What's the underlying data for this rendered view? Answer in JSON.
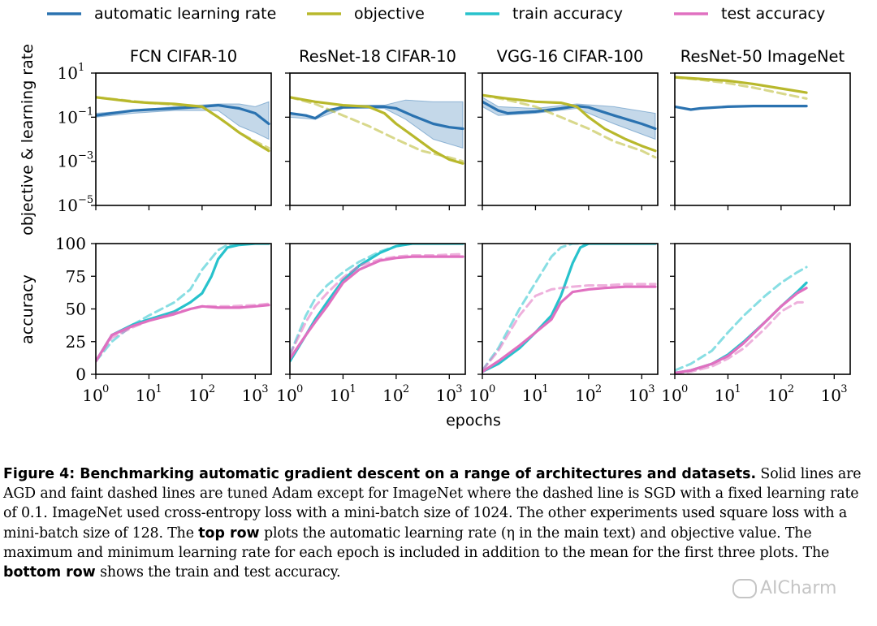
{
  "legend": [
    {
      "label": "automatic learning rate",
      "color": "#2a72b0"
    },
    {
      "label": "objective",
      "color": "#b8b82c"
    },
    {
      "label": "train accuracy",
      "color": "#27c2cc"
    },
    {
      "label": "test accuracy",
      "color": "#e070c0"
    }
  ],
  "xlabel": "epochs",
  "row_labels": {
    "top": "objective & learning rate",
    "bottom": "accuracy"
  },
  "chart_data": [
    {
      "type": "line",
      "title": "FCN CIFAR-10",
      "row": "top",
      "yscale": "log",
      "xscale": "log",
      "xlim": [
        1,
        2000
      ],
      "ylim": [
        1e-05,
        10
      ],
      "yticks": [
        "10^1",
        "10^-1",
        "10^-3",
        "10^-5"
      ],
      "series": [
        {
          "name": "automatic learning rate",
          "style": "solid",
          "band": [
            [
              1,
              0.1,
              0.15
            ],
            [
              5,
              0.15,
              0.2
            ],
            [
              30,
              0.2,
              0.3
            ],
            [
              200,
              0.2,
              0.4
            ],
            [
              500,
              0.04,
              0.4
            ],
            [
              1000,
              0.02,
              0.3
            ],
            [
              1800,
              0.01,
              0.5
            ]
          ],
          "x": [
            1,
            2,
            5,
            10,
            30,
            100,
            200,
            300,
            500,
            1000,
            1800
          ],
          "y": [
            0.12,
            0.15,
            0.2,
            0.22,
            0.25,
            0.3,
            0.35,
            0.3,
            0.25,
            0.15,
            0.05
          ]
        },
        {
          "name": "objective",
          "style": "solid",
          "x": [
            1,
            2,
            5,
            10,
            30,
            100,
            200,
            300,
            500,
            1000,
            1800
          ],
          "y": [
            0.8,
            0.65,
            0.5,
            0.45,
            0.4,
            0.3,
            0.1,
            0.05,
            0.02,
            0.007,
            0.003
          ]
        },
        {
          "name": "objective",
          "style": "dashed",
          "x": [
            1,
            10,
            100,
            200,
            300,
            500,
            1000,
            1800
          ],
          "y": [
            0.8,
            0.45,
            0.3,
            0.1,
            0.05,
            0.02,
            0.008,
            0.004
          ]
        }
      ]
    },
    {
      "type": "line",
      "title": "ResNet-18 CIFAR-10",
      "row": "top",
      "yscale": "log",
      "xscale": "log",
      "xlim": [
        1,
        2000
      ],
      "ylim": [
        1e-05,
        10
      ],
      "series": [
        {
          "name": "automatic learning rate",
          "style": "solid",
          "band": [
            [
              1,
              0.1,
              0.15
            ],
            [
              3,
              0.08,
              0.1
            ],
            [
              10,
              0.25,
              0.35
            ],
            [
              60,
              0.25,
              0.35
            ],
            [
              150,
              0.08,
              0.6
            ],
            [
              500,
              0.01,
              0.5
            ],
            [
              1800,
              0.004,
              0.5
            ]
          ],
          "x": [
            1,
            2,
            3,
            5,
            10,
            30,
            60,
            100,
            200,
            500,
            1000,
            1800
          ],
          "y": [
            0.15,
            0.12,
            0.09,
            0.2,
            0.28,
            0.3,
            0.3,
            0.25,
            0.12,
            0.05,
            0.035,
            0.03
          ]
        },
        {
          "name": "objective",
          "style": "solid",
          "x": [
            1,
            3,
            10,
            30,
            60,
            100,
            200,
            500,
            1000,
            1800
          ],
          "y": [
            0.8,
            0.5,
            0.35,
            0.3,
            0.15,
            0.05,
            0.015,
            0.003,
            0.0012,
            0.0008
          ]
        },
        {
          "name": "objective",
          "style": "dashed",
          "x": [
            1,
            3,
            10,
            30,
            100,
            300,
            1000,
            1800
          ],
          "y": [
            0.8,
            0.4,
            0.12,
            0.04,
            0.01,
            0.003,
            0.0015,
            0.001
          ]
        }
      ]
    },
    {
      "type": "line",
      "title": "VGG-16 CIFAR-100",
      "row": "top",
      "yscale": "log",
      "xscale": "log",
      "xlim": [
        1,
        2000
      ],
      "ylim": [
        1e-05,
        10
      ],
      "series": [
        {
          "name": "automatic learning rate",
          "style": "solid",
          "band": [
            [
              1,
              0.3,
              0.8
            ],
            [
              2,
              0.12,
              0.3
            ],
            [
              10,
              0.15,
              0.25
            ],
            [
              60,
              0.25,
              0.4
            ],
            [
              300,
              0.05,
              0.3
            ],
            [
              1800,
              0.01,
              0.15
            ]
          ],
          "x": [
            1,
            2,
            3,
            10,
            30,
            60,
            100,
            300,
            1000,
            1800
          ],
          "y": [
            0.5,
            0.2,
            0.15,
            0.18,
            0.25,
            0.32,
            0.28,
            0.12,
            0.05,
            0.03
          ]
        },
        {
          "name": "objective",
          "style": "solid",
          "x": [
            1,
            3,
            10,
            30,
            60,
            100,
            200,
            500,
            1000,
            1800
          ],
          "y": [
            1.0,
            0.7,
            0.5,
            0.45,
            0.3,
            0.1,
            0.03,
            0.01,
            0.005,
            0.003
          ]
        },
        {
          "name": "objective",
          "style": "dashed",
          "x": [
            1,
            3,
            10,
            30,
            100,
            300,
            1000,
            1800
          ],
          "y": [
            1.0,
            0.6,
            0.3,
            0.1,
            0.03,
            0.008,
            0.003,
            0.0015
          ]
        }
      ]
    },
    {
      "type": "line",
      "title": "ResNet-50 ImageNet",
      "row": "top",
      "yscale": "log",
      "xscale": "log",
      "xlim": [
        1,
        2000
      ],
      "ylim": [
        1e-05,
        10
      ],
      "series": [
        {
          "name": "automatic learning rate",
          "style": "solid",
          "x": [
            1,
            2,
            3,
            10,
            30,
            100,
            300
          ],
          "y": [
            0.3,
            0.22,
            0.25,
            0.3,
            0.32,
            0.32,
            0.32
          ]
        },
        {
          "name": "objective",
          "style": "solid",
          "x": [
            1,
            3,
            10,
            30,
            100,
            300
          ],
          "y": [
            6.5,
            5.5,
            4.5,
            3.2,
            2.0,
            1.3
          ]
        },
        {
          "name": "objective",
          "style": "dashed",
          "x": [
            1,
            3,
            10,
            30,
            100,
            300
          ],
          "y": [
            6.5,
            5.0,
            3.5,
            2.2,
            1.2,
            0.7
          ]
        }
      ]
    },
    {
      "type": "line",
      "title": "",
      "row": "bottom",
      "dataset": "FCN CIFAR-10",
      "xscale": "log",
      "xlim": [
        1,
        2000
      ],
      "ylim": [
        0,
        100
      ],
      "xticks": [
        "10^0",
        "10^1",
        "10^2",
        "10^3"
      ],
      "yticks": [
        0,
        25,
        50,
        75,
        100
      ],
      "series": [
        {
          "name": "train accuracy",
          "style": "solid",
          "x": [
            1,
            2,
            5,
            10,
            30,
            60,
            100,
            150,
            200,
            300,
            500,
            1000,
            1800
          ],
          "y": [
            10,
            30,
            38,
            42,
            48,
            55,
            62,
            75,
            88,
            97,
            99,
            100,
            100
          ]
        },
        {
          "name": "train accuracy",
          "style": "dashed",
          "x": [
            1,
            2,
            5,
            10,
            30,
            60,
            100,
            200,
            300,
            500,
            1000,
            1800
          ],
          "y": [
            10,
            25,
            38,
            45,
            55,
            65,
            80,
            95,
            99,
            100,
            100,
            100
          ]
        },
        {
          "name": "test accuracy",
          "style": "solid",
          "x": [
            1,
            2,
            5,
            10,
            30,
            60,
            100,
            200,
            500,
            1000,
            1800
          ],
          "y": [
            10,
            30,
            37,
            41,
            46,
            50,
            52,
            51,
            51,
            52,
            53
          ]
        },
        {
          "name": "test accuracy",
          "style": "dashed",
          "x": [
            1,
            2,
            5,
            10,
            30,
            100,
            300,
            1000,
            1800
          ],
          "y": [
            10,
            28,
            36,
            41,
            47,
            52,
            52,
            53,
            54
          ]
        }
      ]
    },
    {
      "type": "line",
      "title": "",
      "row": "bottom",
      "dataset": "ResNet-18 CIFAR-10",
      "xscale": "log",
      "xlim": [
        1,
        2000
      ],
      "ylim": [
        0,
        100
      ],
      "xticks": [
        "10^0",
        "10^1",
        "10^2",
        "10^3"
      ],
      "series": [
        {
          "name": "train accuracy",
          "style": "solid",
          "x": [
            1,
            2,
            3,
            5,
            10,
            20,
            50,
            100,
            200,
            500,
            1800
          ],
          "y": [
            10,
            30,
            42,
            55,
            72,
            83,
            93,
            98,
            100,
            100,
            100
          ]
        },
        {
          "name": "train accuracy",
          "style": "dashed",
          "x": [
            1,
            2,
            3,
            5,
            10,
            20,
            50,
            100,
            200,
            500,
            1800
          ],
          "y": [
            15,
            45,
            58,
            68,
            78,
            86,
            94,
            98,
            100,
            100,
            100
          ]
        },
        {
          "name": "test accuracy",
          "style": "solid",
          "x": [
            1,
            2,
            3,
            5,
            10,
            20,
            50,
            100,
            200,
            500,
            1800
          ],
          "y": [
            12,
            30,
            40,
            52,
            70,
            80,
            87,
            89,
            90,
            90,
            90
          ]
        },
        {
          "name": "test accuracy",
          "style": "dashed",
          "x": [
            1,
            2,
            3,
            5,
            10,
            20,
            50,
            100,
            200,
            500,
            1800
          ],
          "y": [
            15,
            40,
            52,
            62,
            74,
            83,
            88,
            90,
            91,
            91,
            92
          ]
        }
      ]
    },
    {
      "type": "line",
      "title": "",
      "row": "bottom",
      "dataset": "VGG-16 CIFAR-100",
      "xscale": "log",
      "xlim": [
        1,
        2000
      ],
      "ylim": [
        0,
        100
      ],
      "xticks": [
        "10^0",
        "10^1",
        "10^2",
        "10^3"
      ],
      "series": [
        {
          "name": "train accuracy",
          "style": "solid",
          "x": [
            1,
            2,
            5,
            10,
            20,
            30,
            50,
            70,
            100,
            200,
            500,
            1800
          ],
          "y": [
            2,
            8,
            20,
            32,
            45,
            60,
            85,
            97,
            100,
            100,
            100,
            100
          ]
        },
        {
          "name": "train accuracy",
          "style": "dashed",
          "x": [
            1,
            2,
            5,
            10,
            20,
            30,
            50,
            100,
            200,
            500,
            1800
          ],
          "y": [
            3,
            20,
            50,
            70,
            90,
            97,
            100,
            100,
            100,
            100,
            100
          ]
        },
        {
          "name": "test accuracy",
          "style": "solid",
          "x": [
            1,
            2,
            5,
            10,
            20,
            30,
            50,
            100,
            200,
            500,
            1800
          ],
          "y": [
            2,
            10,
            22,
            32,
            42,
            55,
            63,
            65,
            66,
            67,
            67
          ]
        },
        {
          "name": "test accuracy",
          "style": "dashed",
          "x": [
            1,
            2,
            5,
            10,
            20,
            30,
            50,
            100,
            200,
            500,
            1800
          ],
          "y": [
            3,
            18,
            45,
            60,
            65,
            66,
            67,
            68,
            68,
            69,
            69
          ]
        }
      ]
    },
    {
      "type": "line",
      "title": "",
      "row": "bottom",
      "dataset": "ResNet-50 ImageNet",
      "xscale": "log",
      "xlim": [
        1,
        2000
      ],
      "ylim": [
        0,
        100
      ],
      "xticks": [
        "10^0",
        "10^1",
        "10^2",
        "10^3"
      ],
      "series": [
        {
          "name": "train accuracy",
          "style": "solid",
          "x": [
            1,
            2,
            5,
            10,
            20,
            50,
            100,
            200,
            300
          ],
          "y": [
            1,
            3,
            8,
            15,
            25,
            40,
            52,
            63,
            70
          ]
        },
        {
          "name": "train accuracy",
          "style": "dashed",
          "x": [
            1,
            2,
            5,
            10,
            20,
            50,
            100,
            200,
            300
          ],
          "y": [
            3,
            8,
            18,
            32,
            45,
            60,
            70,
            78,
            82
          ]
        },
        {
          "name": "test accuracy",
          "style": "solid",
          "x": [
            1,
            2,
            5,
            10,
            20,
            50,
            100,
            200,
            300
          ],
          "y": [
            1,
            3,
            8,
            14,
            24,
            40,
            52,
            62,
            66
          ]
        },
        {
          "name": "test accuracy",
          "style": "dashed",
          "x": [
            1,
            2,
            5,
            10,
            20,
            50,
            100,
            200,
            300
          ],
          "y": [
            0,
            2,
            6,
            12,
            20,
            35,
            48,
            55,
            55
          ]
        }
      ]
    }
  ],
  "caption": {
    "title": "Figure 4: Benchmarking automatic gradient descent on a range of architectures and datasets.",
    "part1": " Solid lines are AGD and faint dashed lines are tuned Adam except for ImageNet where the dashed line is SGD with a fixed learning rate of 0.1. ImageNet used cross-entropy loss with a mini-batch size of 1024. The other experiments used square loss with a mini-batch size of 128. The ",
    "bold1": "top row",
    "part2": " plots the automatic learning rate (η in the main text) and objective value. The maximum and minimum learning rate for each epoch is included in addition to the mean for the first three plots. The ",
    "bold2": "bottom row",
    "part3": " shows the train and test accuracy."
  },
  "watermark": "AICharm"
}
